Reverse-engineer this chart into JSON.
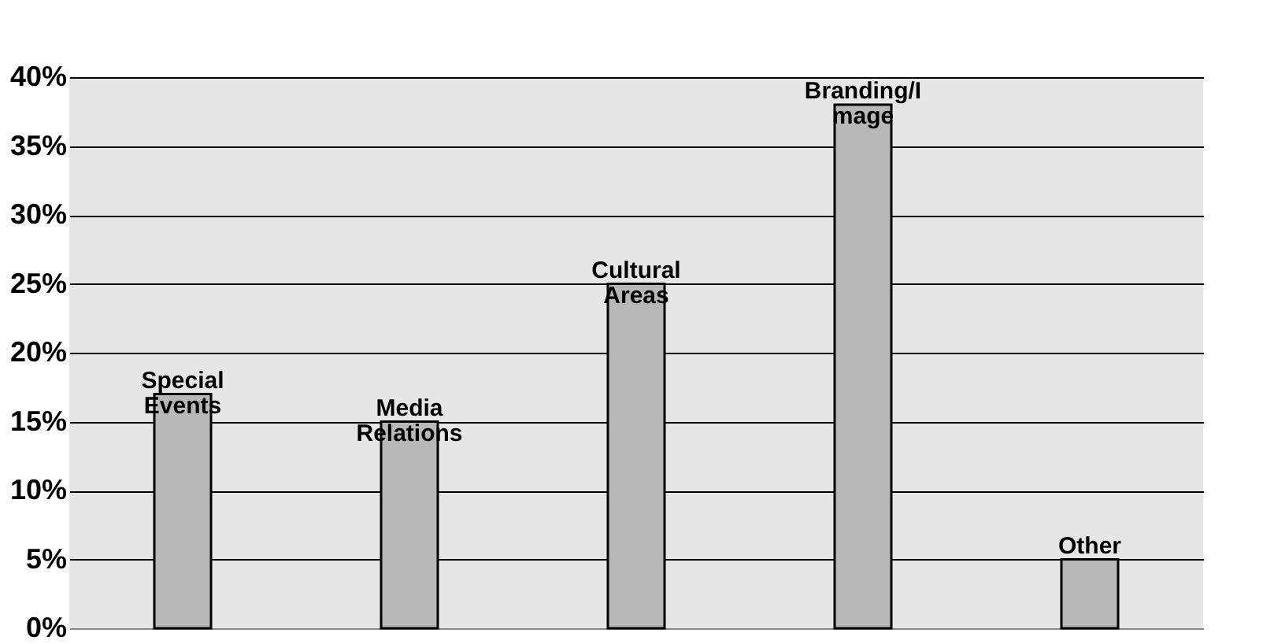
{
  "chart_data": {
    "type": "bar",
    "categories": [
      "Special Events",
      "Media Relations",
      "Cultural Areas",
      "Branding/Image",
      "Other"
    ],
    "values": [
      17,
      15,
      25,
      38,
      5
    ],
    "color": "#b8b8b8",
    "ylim": [
      0,
      40
    ],
    "yticks": [
      {
        "value": 0,
        "label": "0%"
      },
      {
        "value": 5,
        "label": "5%"
      },
      {
        "value": 10,
        "label": "10%"
      },
      {
        "value": 15,
        "label": "15%"
      },
      {
        "value": 20,
        "label": "20%"
      },
      {
        "value": 25,
        "label": "25%"
      },
      {
        "value": 30,
        "label": "30%"
      },
      {
        "value": 35,
        "label": "35%"
      },
      {
        "value": 40,
        "label": "40%"
      }
    ],
    "grid": "y",
    "tick_labels": "y"
  }
}
